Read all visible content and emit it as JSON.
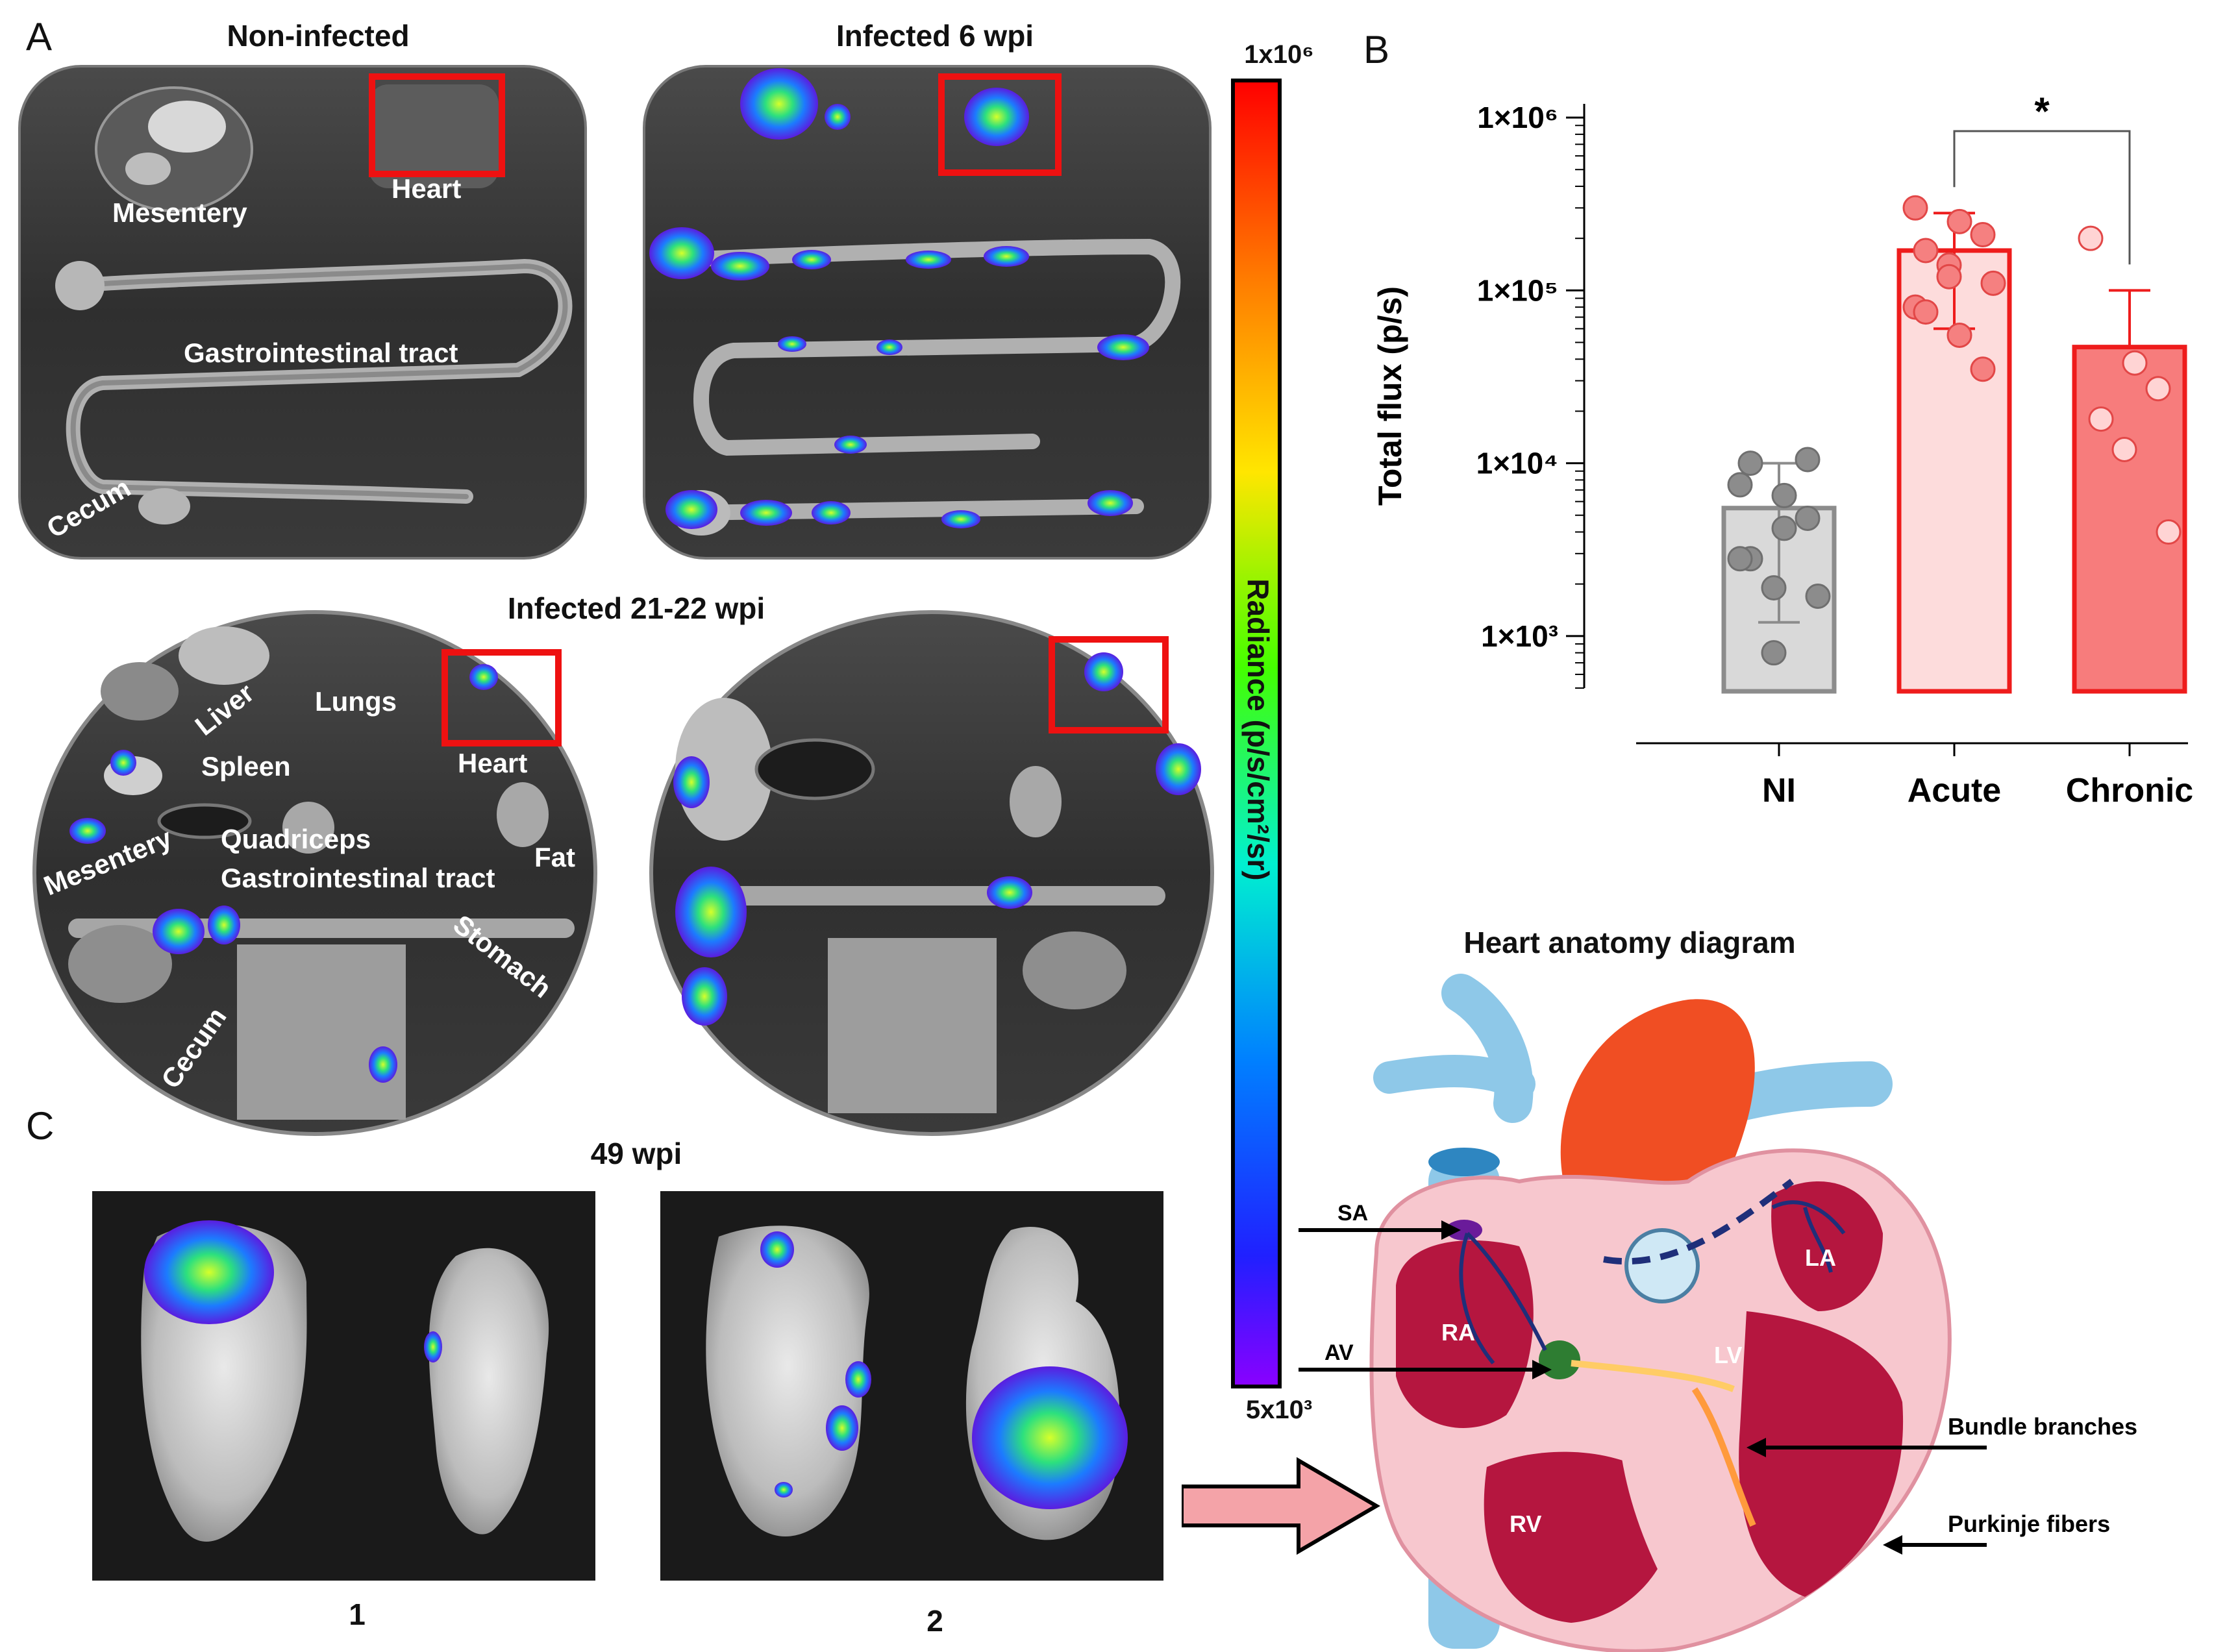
{
  "panels": {
    "a": {
      "letter": "A",
      "title_non_infected": "Non-infected",
      "title_6wpi": "Infected 6 wpi",
      "title_21wpi": "Infected 21-22 wpi",
      "labels_non_infected": {
        "mesentery": "Mesentery",
        "heart": "Heart",
        "gi_tract": "Gastrointestinal tract",
        "cecum": "Cecum"
      },
      "labels_21wpi": {
        "liver": "Liver",
        "lungs": "Lungs",
        "spleen": "Spleen",
        "heart": "Heart",
        "mesentery": "Mesentery",
        "quadriceps": "Quadriceps",
        "gi_tract": "Gastrointestinal tract",
        "fat": "Fat",
        "stomach": "Stomach",
        "cecum": "Cecum"
      }
    },
    "b": {
      "letter": "B"
    },
    "c": {
      "letter": "C",
      "title": "49 wpi",
      "image1_label": "1",
      "image2_label": "2"
    }
  },
  "colorbar": {
    "max_label": "1x10⁶",
    "min_label": "5x10³",
    "axis_label": "Radiance (p/s/cm²/sr)"
  },
  "chart_data": {
    "type": "bar",
    "ylabel": "Total flux (p/s)",
    "yscale": "log",
    "ylim": [
      500,
      1200000
    ],
    "yticks": [
      1000,
      10000,
      100000,
      1000000
    ],
    "ytick_labels": [
      "1×10³",
      "1×10⁴",
      "1×10⁵",
      "1×10⁶"
    ],
    "categories": [
      "NI",
      "Acute",
      "Chronic"
    ],
    "means": [
      5500,
      170000,
      47000
    ],
    "errors_upper": [
      10000,
      280000,
      100000
    ],
    "errors_lower": [
      1200,
      60000,
      null
    ],
    "points": [
      [
        7500,
        6500,
        4800,
        2800,
        1900,
        1700,
        2800,
        4200,
        10500,
        10000,
        800
      ],
      [
        300000,
        250000,
        210000,
        170000,
        140000,
        110000,
        80000,
        55000,
        35000,
        75000,
        120000
      ],
      [
        200000,
        38000,
        27000,
        18000,
        12000,
        4000
      ]
    ],
    "significance": {
      "between": [
        "Acute",
        "Chronic"
      ],
      "label": "*"
    },
    "fills": [
      "#d9d9d9",
      "#fddcdc",
      "#f77c7c"
    ],
    "edges": [
      "#8c8c8c",
      "#ee1c1c",
      "#ee1c1c"
    ],
    "point_colors": [
      "#8c8c8c",
      "#f58080",
      "#ffd4d4"
    ]
  },
  "diagram": {
    "title": "Heart anatomy diagram",
    "labels": {
      "sa": "SA",
      "av": "AV",
      "ra": "RA",
      "la": "LA",
      "lv": "LV",
      "rv": "RV",
      "bundle": "Bundle branches",
      "purkinje": "Purkinje fibers"
    }
  }
}
